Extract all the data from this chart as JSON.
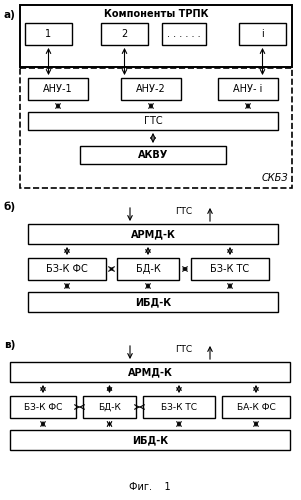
{
  "bg_color": "#ffffff",
  "fig_label_a": "а)",
  "fig_label_b": "б)",
  "fig_label_v": "в)",
  "fig_caption": "Фиг.    1",
  "section_a": {
    "title": "Компоненты ТРПК",
    "gts": "ГТС",
    "akvu": "АКВУ",
    "skbz": "СКБЗ"
  },
  "section_b": {
    "gts": "ГТС",
    "armd": "АРМД-К",
    "boxes": [
      "БЗ-К ФС",
      "БД-К",
      "БЗ-К ТС"
    ],
    "ibd": "ИБД-К"
  },
  "section_v": {
    "gts": "ГТС",
    "armd": "АРМД-К",
    "boxes": [
      "БЗ-К ФС",
      "БД-К",
      "БЗ-К ТС",
      "БА-К ФС"
    ],
    "ibd": "ИБД-К"
  }
}
